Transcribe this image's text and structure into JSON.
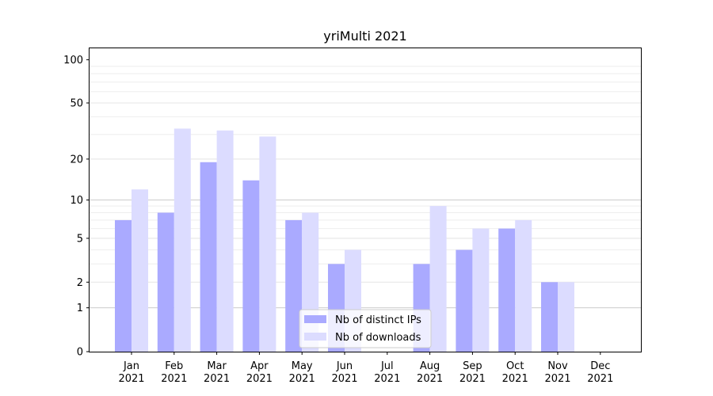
{
  "chart_data": {
    "type": "bar",
    "title": "yriMulti 2021",
    "xlabel": "",
    "ylabel": "",
    "y_scale": "log(1+y)",
    "ylim": [
      0,
      120
    ],
    "yticks": [
      0,
      1,
      2,
      5,
      10,
      20,
      50,
      100
    ],
    "ytick_labels": [
      "0",
      "1",
      "2",
      "5",
      "10",
      "20",
      "50",
      "100"
    ],
    "grid": true,
    "legend_position": "bottom-center",
    "categories": [
      "Jan",
      "Feb",
      "Mar",
      "Apr",
      "May",
      "Jun",
      "Jul",
      "Aug",
      "Sep",
      "Oct",
      "Nov",
      "Dec"
    ],
    "category_year": "2021",
    "series": [
      {
        "name": "Nb of distinct IPs",
        "color": "#aaaaff",
        "values": [
          7,
          8,
          19,
          14,
          7,
          3,
          0,
          3,
          4,
          6,
          2,
          0
        ]
      },
      {
        "name": "Nb of downloads",
        "color": "#dcdcff",
        "values": [
          12,
          33,
          32,
          29,
          8,
          4,
          0,
          9,
          6,
          7,
          2,
          0
        ]
      }
    ]
  }
}
